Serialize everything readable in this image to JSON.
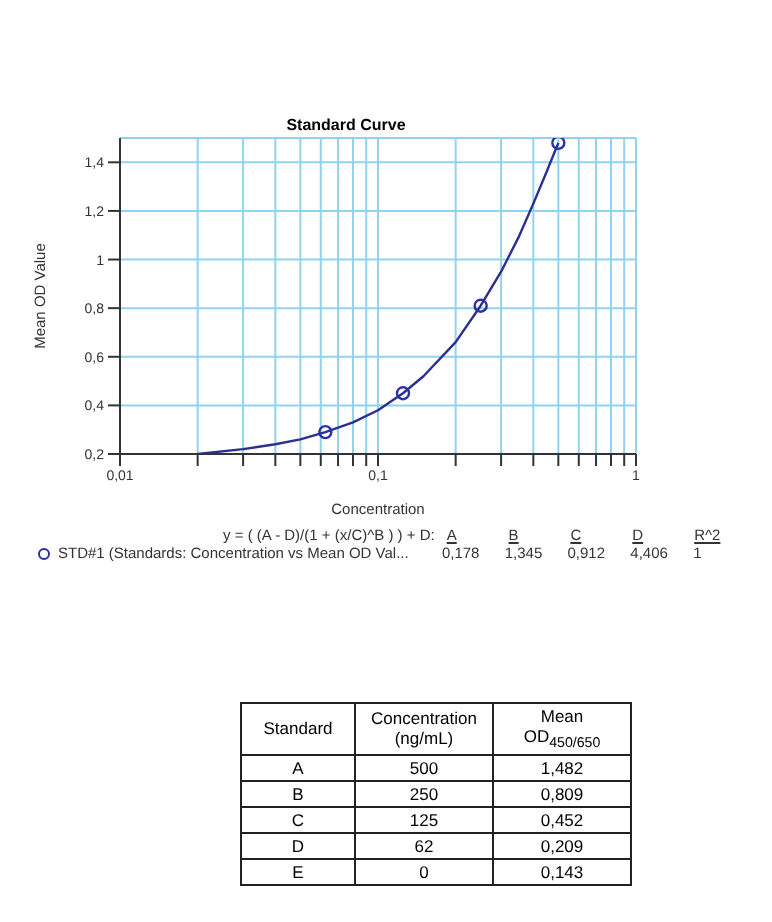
{
  "chart_data": {
    "type": "scatter",
    "title": "Standard Curve",
    "xlabel": "Concentration",
    "ylabel": "Mean OD Value",
    "log": "x",
    "grid": true,
    "legend": "bottom",
    "marker": "circle",
    "xlim": [
      0.01,
      1
    ],
    "xticks": [
      {
        "value": 0.01,
        "label": "0,01"
      },
      {
        "value": 0.02,
        "label": null
      },
      {
        "value": 0.03,
        "label": null
      },
      {
        "value": 0.04,
        "label": null
      },
      {
        "value": 0.05,
        "label": null
      },
      {
        "value": 0.06,
        "label": null
      },
      {
        "value": 0.07,
        "label": null
      },
      {
        "value": 0.08,
        "label": null
      },
      {
        "value": 0.09,
        "label": null
      },
      {
        "value": 0.1,
        "label": "0,1"
      },
      {
        "value": 0.2,
        "label": null
      },
      {
        "value": 0.3,
        "label": null
      },
      {
        "value": 0.4,
        "label": null
      },
      {
        "value": 0.5,
        "label": null
      },
      {
        "value": 0.6,
        "label": null
      },
      {
        "value": 0.7,
        "label": null
      },
      {
        "value": 0.8,
        "label": null
      },
      {
        "value": 0.9,
        "label": null
      },
      1
    ],
    "ylim": [
      0.2,
      1.5
    ],
    "yticks": [
      {
        "value": 0.2,
        "label": "0,2"
      },
      {
        "value": 0.4,
        "label": "0,4"
      },
      {
        "value": 0.6,
        "label": "0,6"
      },
      {
        "value": 0.8,
        "label": "0,8"
      },
      1,
      {
        "value": 1.2,
        "label": "1,2"
      },
      {
        "value": 1.4,
        "label": "1,4"
      }
    ],
    "series": [
      {
        "type": "line",
        "marker": "none",
        "color": "#2b2f8f",
        "x": [
          0.02,
          0.03,
          0.04,
          0.05,
          0.0625,
          0.08,
          0.1,
          0.125,
          0.15,
          0.2,
          0.25,
          0.3,
          0.35,
          0.4,
          0.45,
          0.5
        ],
        "values": [
          0.2,
          0.22,
          0.24,
          0.26,
          0.29,
          0.33,
          0.38,
          0.45,
          0.52,
          0.66,
          0.81,
          0.95,
          1.09,
          1.23,
          1.36,
          1.48
        ]
      },
      {
        "name": "STD#1 (Standards: Concentration vs Mean OD Val...",
        "color": "#2b2fa8",
        "x": [
          0.0625,
          0.125,
          0.25,
          0.5
        ],
        "values": [
          0.29,
          0.45,
          0.81,
          1.48
        ]
      }
    ],
    "annotations": [
      "y = ( (A - D)/(1 + (x/C)^B ) ) + D:",
      "A",
      "B",
      "C",
      "D",
      "R^2",
      "0,178",
      "1,345",
      "0,912",
      "4,406",
      "1",
      "Standard",
      "Concentration (ng/mL)",
      "Mean OD$_{450/650}$",
      "A",
      "500",
      "1,482",
      "B",
      "250",
      "0,809",
      "C",
      "125",
      "0,452",
      "D",
      "62",
      "0,209",
      "E",
      "0",
      "0,143"
    ]
  }
}
